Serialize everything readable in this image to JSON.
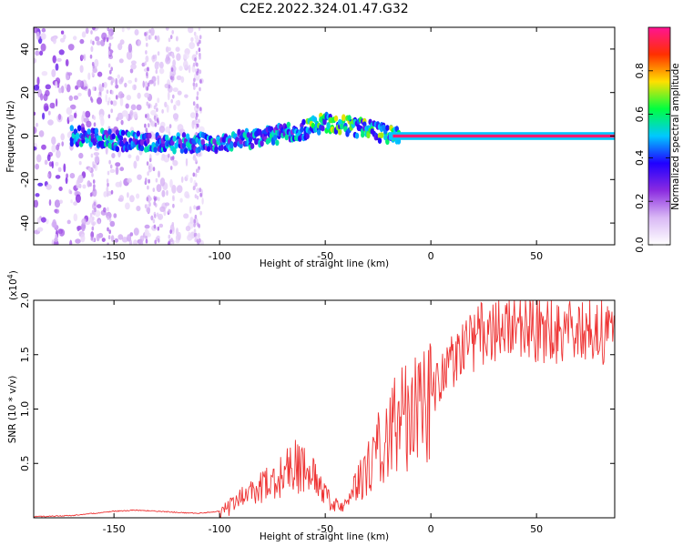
{
  "chart_data": [
    {
      "type": "heatmap",
      "title": "C2E2.2022.324.01.47.G32",
      "xlabel": "Height of straight line (km)",
      "ylabel": "Frequency (Hz)",
      "xlim": [
        -188,
        87
      ],
      "ylim": [
        -50,
        50
      ],
      "xticks": [
        "-150",
        "-100",
        "-50",
        "0",
        "50"
      ],
      "yticks": [
        "-40",
        "-20",
        "0",
        "20",
        "40"
      ],
      "colorbar": {
        "label": "Normalized spectral amplitude",
        "range": [
          0,
          1
        ],
        "ticks": [
          "0.0",
          "0.2",
          "0.4",
          "0.6",
          "0.8"
        ],
        "colors": [
          "#ffffff",
          "#d9b8f5",
          "#8b2be0",
          "#2000ff",
          "#00c8ff",
          "#00ff40",
          "#ffe000",
          "#ff3000",
          "#ff1493"
        ]
      },
      "ridge": {
        "x": [
          -170,
          -160,
          -150,
          -140,
          -130,
          -120,
          -110,
          -100,
          -90,
          -80,
          -70,
          -60,
          -50,
          -45,
          -40,
          -35,
          -30,
          -25,
          -20,
          0,
          87
        ],
        "y": [
          0,
          -1,
          -2,
          -2.5,
          -3,
          -3,
          -3,
          -3,
          -2,
          -0.5,
          1,
          3,
          6,
          6,
          5,
          4,
          3,
          2,
          0,
          0,
          0
        ]
      }
    },
    {
      "type": "line",
      "xlabel": "Height of straight line (km)",
      "ylabel": "SNR (10 * v/v)",
      "multiplier": "(x10",
      "multiplier_exp": "4",
      "xlim": [
        -188,
        87
      ],
      "ylim": [
        0,
        2.0
      ],
      "xticks": [
        "-150",
        "-100",
        "-50",
        "0",
        "50"
      ],
      "yticks": [
        "0.5",
        "1.0",
        "1.5",
        "2.0"
      ],
      "color": "#ee3333",
      "series": [
        {
          "x": [
            -188,
            -170,
            -160,
            -150,
            -140,
            -130,
            -120,
            -110,
            -100,
            -95,
            -90,
            -85,
            -80,
            -75,
            -70,
            -65,
            -60,
            -55,
            -50,
            -45,
            -40,
            -35,
            -30,
            -25,
            -20,
            -15,
            -10,
            -5,
            0,
            5,
            10,
            15,
            20,
            25,
            30,
            35,
            40,
            45,
            50,
            55,
            60,
            65,
            70,
            75,
            80,
            87
          ],
          "y": [
            0.01,
            0.02,
            0.04,
            0.06,
            0.07,
            0.06,
            0.05,
            0.04,
            0.06,
            0.1,
            0.18,
            0.22,
            0.28,
            0.33,
            0.38,
            0.5,
            0.42,
            0.35,
            0.2,
            0.1,
            0.12,
            0.3,
            0.45,
            0.65,
            0.75,
            0.9,
            0.95,
            1.0,
            1.1,
            1.3,
            1.45,
            1.55,
            1.62,
            1.7,
            1.75,
            1.78,
            1.78,
            1.76,
            1.74,
            1.72,
            1.72,
            1.72,
            1.71,
            1.7,
            1.7,
            1.7
          ]
        }
      ]
    }
  ]
}
